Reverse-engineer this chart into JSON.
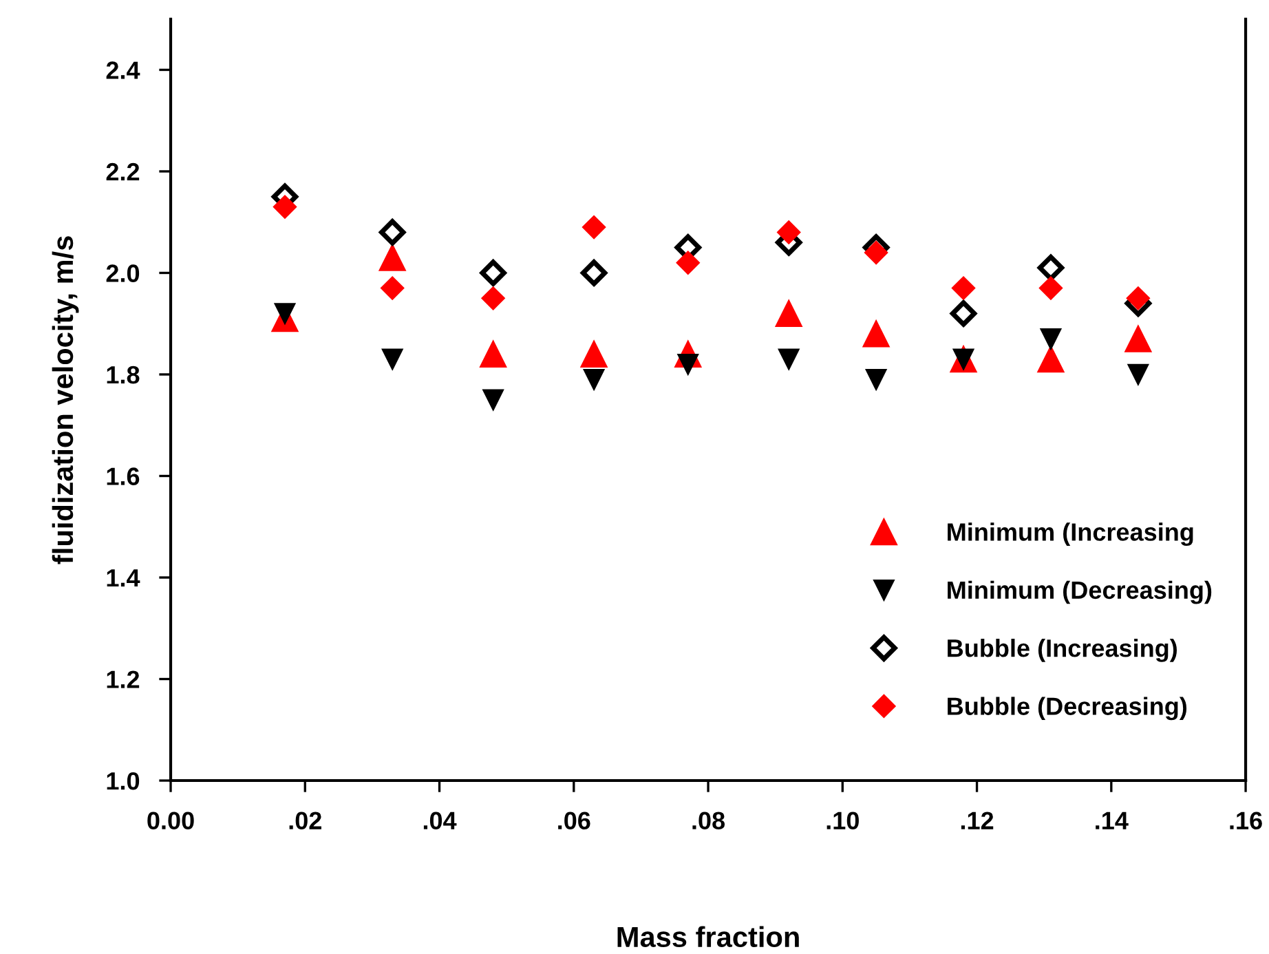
{
  "chart_data": {
    "type": "scatter",
    "xlabel": "Mass fraction",
    "ylabel": "fluidization velocity, m/s",
    "x": [
      0.017,
      0.033,
      0.048,
      0.063,
      0.077,
      0.092,
      0.105,
      0.118,
      0.131,
      0.144
    ],
    "series": [
      {
        "name": "Minimum (Increasing",
        "color": "#ff0000",
        "marker": "triangle",
        "values": [
          1.91,
          2.03,
          1.84,
          1.84,
          1.84,
          1.92,
          1.88,
          1.83,
          1.83,
          1.87
        ]
      },
      {
        "name": "Minimum (Decreasing)",
        "color": "#000000",
        "marker": "triangle_down",
        "values": [
          1.92,
          1.83,
          1.75,
          1.79,
          1.82,
          1.83,
          1.79,
          1.83,
          1.87,
          1.8
        ]
      },
      {
        "name": "Bubble (Increasing)",
        "color": "#000000",
        "marker": "diamond_open",
        "values": [
          2.15,
          2.08,
          2.0,
          2.0,
          2.05,
          2.06,
          2.05,
          1.92,
          2.01,
          1.94
        ]
      },
      {
        "name": "Bubble (Decreasing)",
        "color": "#ff0000",
        "marker": "diamond",
        "values": [
          2.13,
          1.97,
          1.95,
          2.09,
          2.02,
          2.08,
          2.04,
          1.97,
          1.97,
          1.95
        ]
      }
    ],
    "xlim": [
      0,
      0.16
    ],
    "ylim": [
      1.0,
      2.5
    ],
    "xticks": [
      {
        "value": 0,
        "label": "0.00"
      },
      {
        "value": 0.02,
        "label": ".02"
      },
      {
        "value": 0.04,
        "label": ".04"
      },
      {
        "value": 0.06,
        "label": ".06"
      },
      {
        "value": 0.08,
        "label": ".08"
      },
      {
        "value": 0.1,
        "label": ".10"
      },
      {
        "value": 0.12,
        "label": ".12"
      },
      {
        "value": 0.14,
        "label": ".14"
      },
      {
        "value": 0.16,
        "label": ".16"
      }
    ],
    "yticks": [
      {
        "value": 1.0,
        "label": "1.0"
      },
      {
        "value": 1.2,
        "label": "1.2"
      },
      {
        "value": 1.4,
        "label": "1.4"
      },
      {
        "value": 1.6,
        "label": "1.6"
      },
      {
        "value": 1.8,
        "label": "1.8"
      },
      {
        "value": 2.0,
        "label": "2.0"
      },
      {
        "value": 2.2,
        "label": "2.2"
      },
      {
        "value": 2.4,
        "label": "2.4"
      }
    ],
    "grid": false,
    "legend": "bottom right"
  }
}
